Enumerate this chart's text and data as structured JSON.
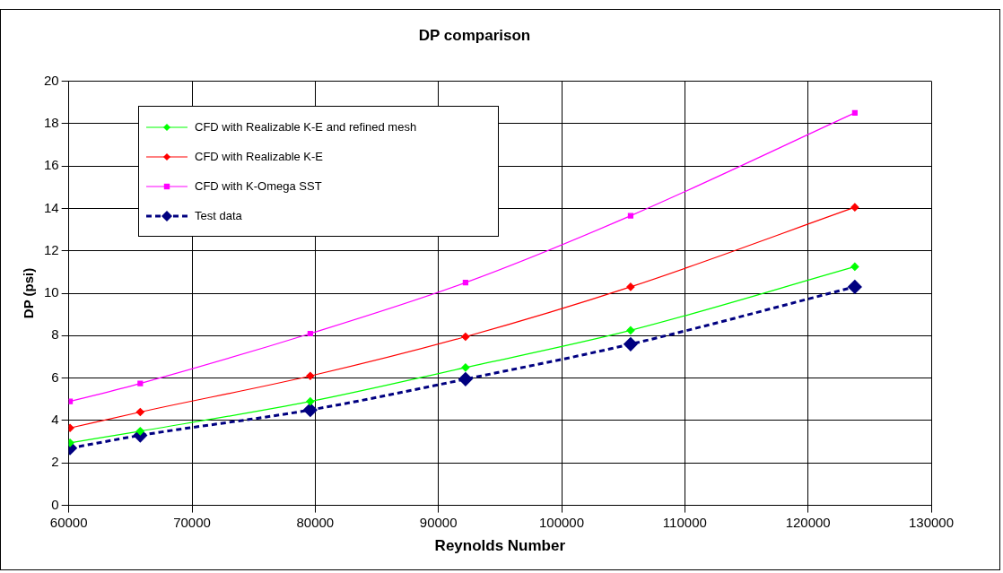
{
  "chart_data": {
    "type": "line",
    "title": "DP comparison",
    "xlabel": "Reynolds Number",
    "ylabel": "DP (psi)",
    "x": [
      60100,
      65800,
      79600,
      92200,
      105600,
      123800
    ],
    "series": [
      {
        "name": "CFD with Realizable K-E and refined mesh",
        "color": "#00ff00",
        "values": [
          2.95,
          3.5,
          4.9,
          6.5,
          8.25,
          11.25
        ],
        "marker": "diamond",
        "line_style": "solid"
      },
      {
        "name": "CFD with Realizable K-E",
        "color": "#ff0000",
        "values": [
          3.65,
          4.4,
          6.1,
          7.95,
          10.3,
          14.05
        ],
        "marker": "diamond",
        "line_style": "solid"
      },
      {
        "name": "CFD with K-Omega SST",
        "color": "#ff00ff",
        "values": [
          4.9,
          5.75,
          8.1,
          10.5,
          13.65,
          18.5
        ],
        "marker": "square",
        "line_style": "solid"
      },
      {
        "name": "Test data",
        "color": "#000080",
        "values": [
          2.7,
          3.3,
          4.5,
          5.95,
          7.6,
          10.3
        ],
        "marker": "diamond",
        "line_style": "dashed"
      }
    ],
    "xlim": [
      60000,
      130000
    ],
    "xticks": [
      60000,
      70000,
      80000,
      90000,
      100000,
      110000,
      120000,
      130000
    ],
    "ylim": [
      0,
      20
    ],
    "yticks": [
      0,
      2,
      4,
      6,
      8,
      10,
      12,
      14,
      16,
      18,
      20
    ],
    "grid": true,
    "legend": "top left"
  }
}
